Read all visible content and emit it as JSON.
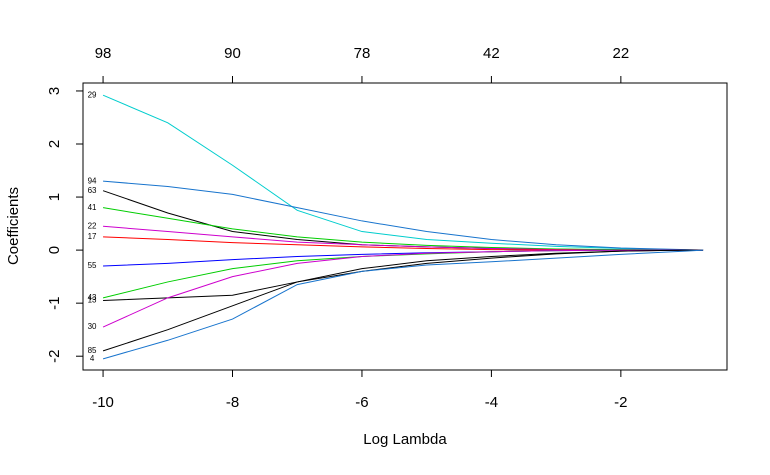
{
  "chart_data": {
    "type": "line",
    "xlabel": "Log Lambda",
    "ylabel": "Coefficients",
    "x": [
      -10,
      -9,
      -8,
      -7,
      -6,
      -5,
      -4,
      -3,
      -2,
      -1,
      -0.73
    ],
    "xlim": [
      -10.31,
      -0.36
    ],
    "ylim": [
      -2.26,
      3.15
    ],
    "xticks": [
      -10,
      -8,
      -6,
      -4,
      -2
    ],
    "x2ticks": [
      {
        "value": -10,
        "label": "98"
      },
      {
        "value": -8,
        "label": "90"
      },
      {
        "value": -6,
        "label": "78"
      },
      {
        "value": -4,
        "label": "42"
      },
      {
        "value": -2,
        "label": "22"
      }
    ],
    "yticks": [
      -2,
      -1,
      0,
      1,
      2,
      3
    ],
    "series": [
      {
        "name": "29",
        "color": "#00cdcd",
        "values": [
          2.92,
          2.4,
          1.6,
          0.75,
          0.35,
          0.2,
          0.13,
          0.07,
          0.03,
          0.005,
          0
        ]
      },
      {
        "name": "94",
        "color": "#1874cd",
        "values": [
          1.3,
          1.2,
          1.05,
          0.8,
          0.55,
          0.35,
          0.2,
          0.1,
          0.04,
          0.01,
          0
        ]
      },
      {
        "name": "63",
        "color": "#000000",
        "values": [
          1.12,
          0.7,
          0.35,
          0.2,
          0.1,
          0.06,
          0.03,
          0.015,
          0.005,
          0,
          0
        ]
      },
      {
        "name": "41",
        "color": "#00cd00",
        "values": [
          0.8,
          0.6,
          0.4,
          0.25,
          0.15,
          0.09,
          0.05,
          0.02,
          0.01,
          0,
          0
        ]
      },
      {
        "name": "22",
        "color": "#cd00cd",
        "values": [
          0.45,
          0.35,
          0.25,
          0.15,
          0.1,
          0.06,
          0.03,
          0.01,
          0,
          0,
          0
        ]
      },
      {
        "name": "17",
        "color": "#ff0000",
        "values": [
          0.25,
          0.2,
          0.14,
          0.1,
          0.06,
          0.03,
          0.01,
          0,
          0,
          0,
          0
        ]
      },
      {
        "name": "55",
        "color": "#0000ff",
        "values": [
          -0.3,
          -0.25,
          -0.18,
          -0.12,
          -0.08,
          -0.05,
          -0.03,
          -0.01,
          0,
          0,
          0
        ]
      },
      {
        "name": "43",
        "color": "#00cd00",
        "values": [
          -0.9,
          -0.6,
          -0.35,
          -0.2,
          -0.12,
          -0.07,
          -0.03,
          -0.01,
          0,
          0,
          0
        ]
      },
      {
        "name": "13",
        "color": "#000000",
        "values": [
          -0.95,
          -0.9,
          -0.85,
          -0.6,
          -0.4,
          -0.25,
          -0.15,
          -0.07,
          -0.02,
          0,
          0
        ]
      },
      {
        "name": "30",
        "color": "#cd00cd",
        "values": [
          -1.45,
          -0.9,
          -0.5,
          -0.25,
          -0.12,
          -0.06,
          -0.03,
          -0.01,
          0,
          0,
          0
        ]
      },
      {
        "name": "85",
        "color": "#000000",
        "values": [
          -1.9,
          -1.5,
          -1.05,
          -0.6,
          -0.35,
          -0.2,
          -0.12,
          -0.06,
          -0.02,
          0,
          0
        ]
      },
      {
        "name": "4",
        "color": "#1874cd",
        "values": [
          -2.05,
          -1.7,
          -1.3,
          -0.65,
          -0.4,
          -0.28,
          -0.22,
          -0.15,
          -0.08,
          -0.02,
          0
        ]
      }
    ]
  }
}
